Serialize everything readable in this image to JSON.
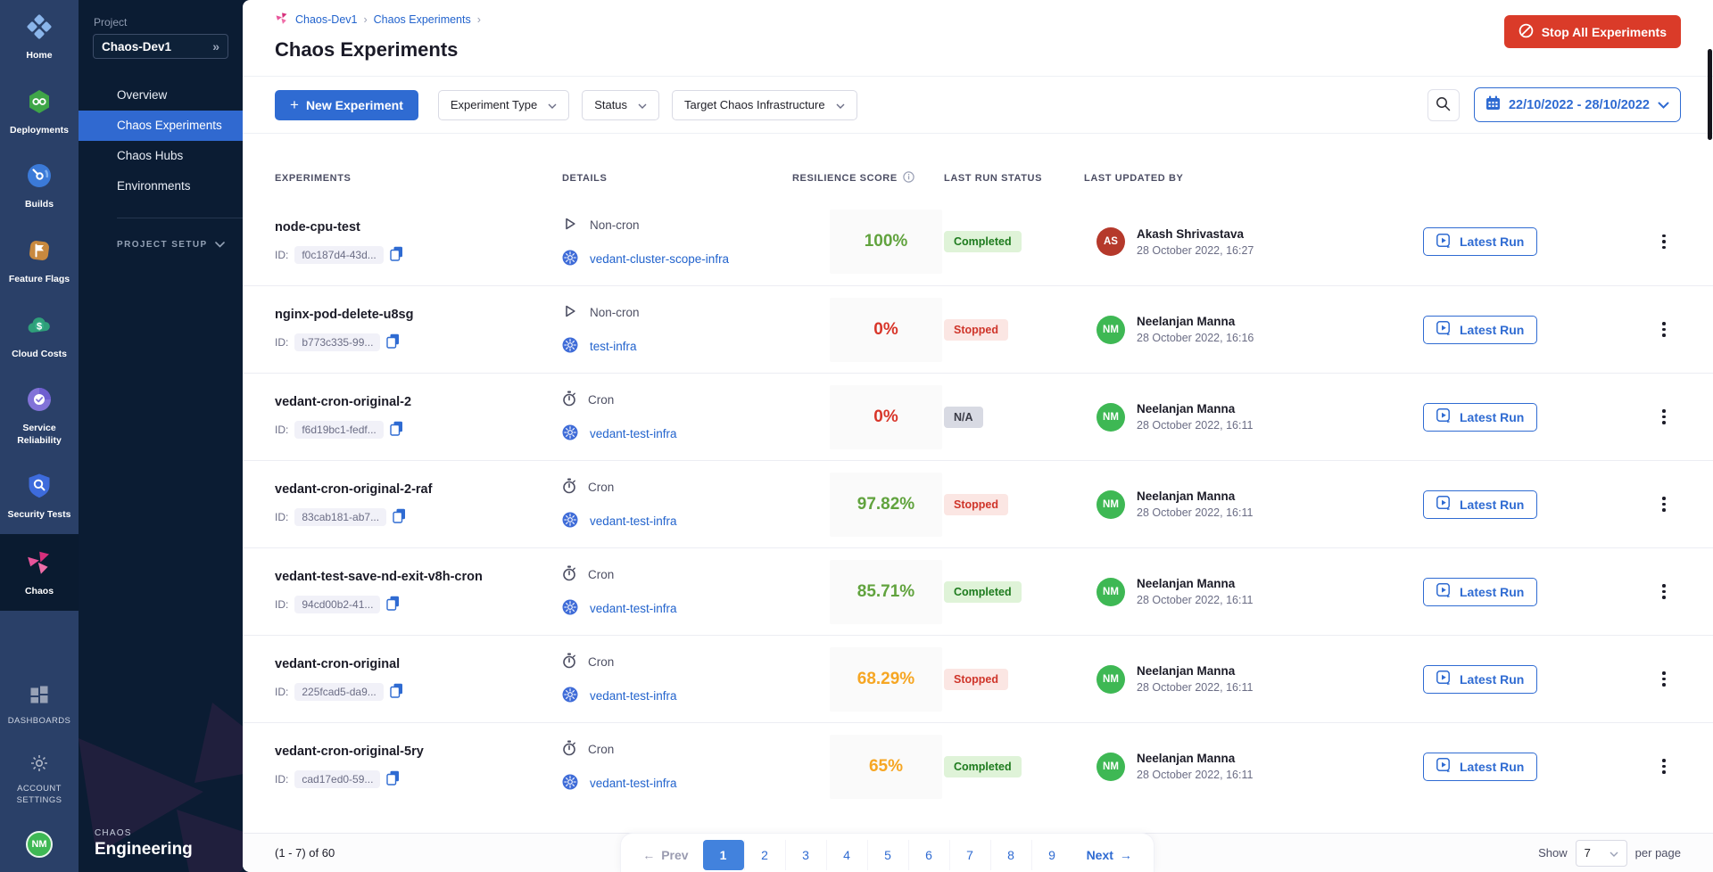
{
  "colors": {
    "primary_blue": "#2f6bd2",
    "danger_red": "#da3b29",
    "success_green": "#1e7b1e",
    "warning_amber": "#f6a623",
    "score_red": "#d8362a",
    "score_green": "#61a33e",
    "sidebar_navy": "#2a4068",
    "panel_navy": "#0b1c33",
    "link_blue": "#2263cd"
  },
  "sidebar": {
    "modules": [
      {
        "label": "Home",
        "icon": "harness-icon",
        "active": false
      },
      {
        "label": "Deployments",
        "icon": "deployments-icon",
        "active": false
      },
      {
        "label": "Builds",
        "icon": "builds-icon",
        "active": false
      },
      {
        "label": "Feature Flags",
        "icon": "feature-flags-icon",
        "active": false
      },
      {
        "label": "Cloud Costs",
        "icon": "cloud-costs-icon",
        "active": false
      },
      {
        "label": "Service Reliability",
        "icon": "service-reliability-icon",
        "active": false
      },
      {
        "label": "Security Tests",
        "icon": "security-tests-icon",
        "active": false
      },
      {
        "label": "Chaos",
        "icon": "chaos-icon",
        "active": true
      }
    ],
    "bottom_items": [
      {
        "label": "DASHBOARDS",
        "icon": "dashboards-icon"
      },
      {
        "label": "ACCOUNT SETTINGS",
        "icon": "gear-icon"
      }
    ],
    "avatar": "NM"
  },
  "project_panel": {
    "label": "Project",
    "name": "Chaos-Dev1",
    "expand_icon": "»",
    "nav": [
      {
        "label": "Overview",
        "active": false
      },
      {
        "label": "Chaos Experiments",
        "active": true
      },
      {
        "label": "Chaos Hubs",
        "active": false
      },
      {
        "label": "Environments",
        "active": false
      }
    ],
    "section_label": "PROJECT SETUP",
    "brand_small": "CHAOS",
    "brand_large": "Engineering"
  },
  "header": {
    "breadcrumb": [
      {
        "label": "Chaos-Dev1"
      },
      {
        "label": "Chaos Experiments"
      }
    ],
    "title": "Chaos Experiments",
    "stop_all_label": "Stop All Experiments"
  },
  "toolbar": {
    "plus": "+",
    "new_experiment_label": "New Experiment",
    "filters": [
      {
        "label": "Experiment Type"
      },
      {
        "label": "Status"
      },
      {
        "label": "Target Chaos Infrastructure"
      }
    ],
    "date_range": "22/10/2022 - 28/10/2022"
  },
  "table": {
    "columns": [
      "EXPERIMENTS",
      "DETAILS",
      "RESILIENCE SCORE",
      "LAST RUN STATUS",
      "LAST UPDATED BY"
    ],
    "id_prefix": "ID:",
    "action_label": "Latest Run",
    "rows": [
      {
        "name": "node-cpu-test",
        "id": "f0c187d4-43d...",
        "schedule": "Non-cron",
        "infra": "vedant-cluster-scope-infra",
        "score": "100%",
        "score_tone": "green",
        "status": "Completed",
        "status_tone": "success",
        "avatar_initials": "AS",
        "avatar_tone": "red",
        "user": "Akash Shrivastava",
        "date": "28 October 2022, 16:27"
      },
      {
        "name": "nginx-pod-delete-u8sg",
        "id": "b773c335-99...",
        "schedule": "Non-cron",
        "infra": "test-infra",
        "score": "0%",
        "score_tone": "red",
        "status": "Stopped",
        "status_tone": "danger",
        "avatar_initials": "NM",
        "avatar_tone": "green",
        "user": "Neelanjan Manna",
        "date": "28 October 2022, 16:16"
      },
      {
        "name": "vedant-cron-original-2",
        "id": "f6d19bc1-fedf...",
        "schedule": "Cron",
        "infra": "vedant-test-infra",
        "score": "0%",
        "score_tone": "red",
        "status": "N/A",
        "status_tone": "neutral",
        "avatar_initials": "NM",
        "avatar_tone": "green",
        "user": "Neelanjan Manna",
        "date": "28 October 2022, 16:11"
      },
      {
        "name": "vedant-cron-original-2-raf",
        "id": "83cab181-ab7...",
        "schedule": "Cron",
        "infra": "vedant-test-infra",
        "score": "97.82%",
        "score_tone": "green",
        "status": "Stopped",
        "status_tone": "danger",
        "avatar_initials": "NM",
        "avatar_tone": "green",
        "user": "Neelanjan Manna",
        "date": "28 October 2022, 16:11"
      },
      {
        "name": "vedant-test-save-nd-exit-v8h-cron",
        "id": "94cd00b2-41...",
        "schedule": "Cron",
        "infra": "vedant-test-infra",
        "score": "85.71%",
        "score_tone": "green",
        "status": "Completed",
        "status_tone": "success",
        "avatar_initials": "NM",
        "avatar_tone": "green",
        "user": "Neelanjan Manna",
        "date": "28 October 2022, 16:11"
      },
      {
        "name": "vedant-cron-original",
        "id": "225fcad5-da9...",
        "schedule": "Cron",
        "infra": "vedant-test-infra",
        "score": "68.29%",
        "score_tone": "amber",
        "status": "Stopped",
        "status_tone": "danger",
        "avatar_initials": "NM",
        "avatar_tone": "green",
        "user": "Neelanjan Manna",
        "date": "28 October 2022, 16:11"
      },
      {
        "name": "vedant-cron-original-5ry",
        "id": "cad17ed0-59...",
        "schedule": "Cron",
        "infra": "vedant-test-infra",
        "score": "65%",
        "score_tone": "amber",
        "status": "Completed",
        "status_tone": "success",
        "avatar_initials": "NM",
        "avatar_tone": "green",
        "user": "Neelanjan Manna",
        "date": "28 October 2022, 16:11"
      }
    ]
  },
  "pagination": {
    "summary": "(1 - 7) of 60",
    "prev_label": "Prev",
    "prev_arrow": "←",
    "pages": [
      "1",
      "2",
      "3",
      "4",
      "5",
      "6",
      "7",
      "8",
      "9"
    ],
    "active_page": "1",
    "next_label": "Next",
    "next_arrow": "→",
    "show_label": "Show",
    "per_page_value": "7",
    "per_page_label": "per page"
  }
}
